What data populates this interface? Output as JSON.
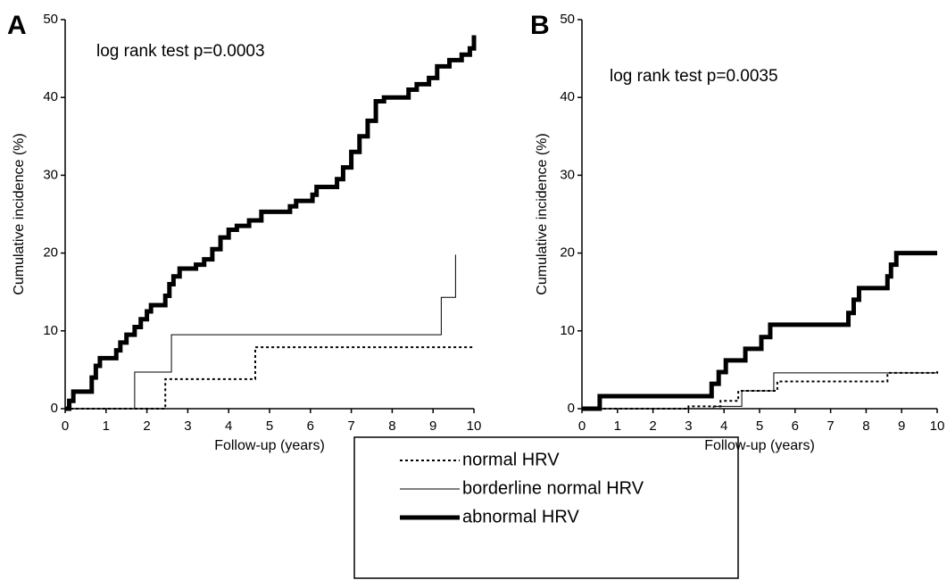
{
  "chart_data": [
    {
      "type": "line",
      "step": true,
      "label": "A",
      "annotation": "log rank test p=0.0003",
      "y_label": "Cumulative incidence (%)",
      "x_label": "Follow-up (years)",
      "xlim": [
        0,
        10
      ],
      "xticks": [
        0,
        1,
        2,
        3,
        4,
        5,
        6,
        7,
        8,
        9,
        10
      ],
      "ylim": [
        0,
        50
      ],
      "yticks": [
        0,
        10,
        20,
        30,
        40,
        50
      ],
      "series": [
        {
          "name": "normal HRV",
          "color": "#000000",
          "style": "dotted",
          "width": 2,
          "x": [
            0,
            2.45,
            4.65,
            10
          ],
          "values": [
            0,
            3.8,
            7.9,
            7.9
          ]
        },
        {
          "name": "borderline normal HRV",
          "color": "#000000",
          "style": "solid",
          "width": 1,
          "x": [
            0,
            1.7,
            2.6,
            9.2,
            9.55
          ],
          "values": [
            0,
            4.7,
            9.5,
            14.3,
            19.8
          ]
        },
        {
          "name": "abnormal HRV",
          "color": "#000000",
          "style": "solid",
          "width": 5,
          "x": [
            0,
            0.1,
            0.2,
            0.65,
            0.75,
            0.85,
            1.25,
            1.35,
            1.5,
            1.7,
            1.85,
            2.0,
            2.1,
            2.45,
            2.55,
            2.65,
            2.8,
            3.2,
            3.4,
            3.6,
            3.8,
            4.0,
            4.2,
            4.5,
            4.8,
            5.5,
            5.65,
            6.05,
            6.15,
            6.65,
            6.8,
            7.0,
            7.2,
            7.4,
            7.6,
            7.8,
            8.4,
            8.6,
            8.9,
            9.1,
            9.4,
            9.7,
            9.9,
            10.0
          ],
          "values": [
            0,
            1,
            2.2,
            4,
            5.5,
            6.5,
            7.5,
            8.5,
            9.5,
            10.5,
            11.5,
            12.5,
            13.3,
            14.5,
            16,
            17,
            18,
            18.5,
            19.2,
            20.5,
            22,
            23,
            23.5,
            24.2,
            25.3,
            26,
            26.7,
            27.5,
            28.5,
            29.5,
            31,
            33,
            35,
            37,
            39.5,
            40,
            41,
            41.7,
            42.5,
            44,
            44.8,
            45.5,
            46.3,
            48
          ]
        }
      ]
    },
    {
      "type": "line",
      "step": true,
      "label": "B",
      "annotation": "log rank test p=0.0035",
      "y_label": "Cumulative incidence (%)",
      "x_label": "Follow-up (years)",
      "xlim": [
        0,
        10
      ],
      "xticks": [
        0,
        1,
        2,
        3,
        4,
        5,
        6,
        7,
        8,
        9,
        10
      ],
      "ylim": [
        0,
        50
      ],
      "yticks": [
        0,
        10,
        20,
        30,
        40,
        50
      ],
      "series": [
        {
          "color": "#000000",
          "style": "dotted",
          "width": 2,
          "x": [
            0,
            3.0,
            3.9,
            4.4,
            5.5,
            8.6,
            10
          ],
          "values": [
            0,
            0.3,
            1,
            2.3,
            3.5,
            4.6,
            4.8
          ]
        },
        {
          "color": "#000000",
          "style": "solid",
          "width": 1,
          "x": [
            0,
            3.7,
            4.5,
            5.4,
            10
          ],
          "values": [
            0,
            0.3,
            2.3,
            4.6,
            4.6
          ]
        },
        {
          "color": "#000000",
          "style": "solid",
          "width": 5,
          "x": [
            0,
            0.5,
            3.65,
            3.85,
            4.05,
            4.6,
            5.05,
            5.3,
            7.5,
            7.65,
            7.8,
            8.6,
            8.7,
            8.85,
            10
          ],
          "values": [
            0,
            1.6,
            3.2,
            4.7,
            6.2,
            7.7,
            9.2,
            10.8,
            12.3,
            14,
            15.5,
            17,
            18.5,
            20,
            20
          ]
        }
      ]
    }
  ]
}
